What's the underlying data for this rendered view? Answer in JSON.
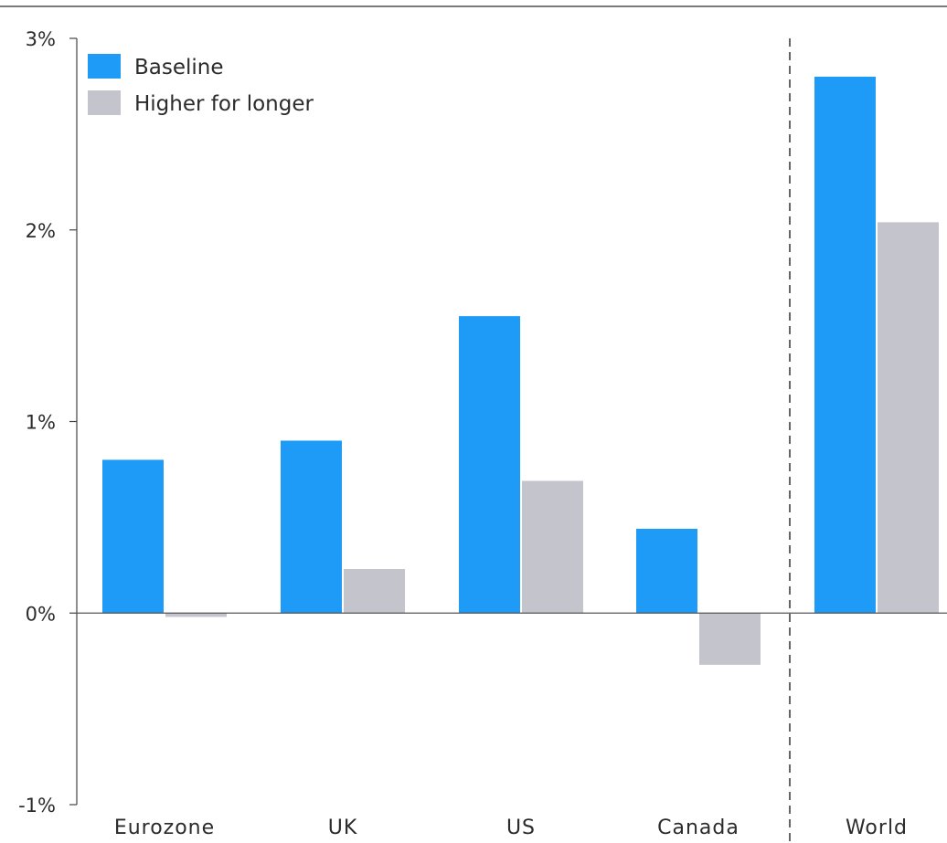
{
  "chart_data": {
    "type": "bar",
    "categories": [
      "Eurozone",
      "UK",
      "US",
      "Canada",
      "World"
    ],
    "series": [
      {
        "name": "Baseline",
        "values": [
          0.8,
          0.9,
          1.55,
          0.44,
          2.8
        ]
      },
      {
        "name": "Higher for longer",
        "values": [
          -0.02,
          0.23,
          0.69,
          -0.27,
          2.04
        ]
      }
    ],
    "ylim": [
      -1,
      3
    ],
    "yticks": [
      3,
      2,
      1,
      0,
      -1
    ],
    "ytick_labels": [
      "3%",
      "2%",
      "1%",
      "0%",
      "-1%"
    ],
    "legend": "top-left",
    "separator_before": "World",
    "colors": {
      "Baseline": "#1e9bf7",
      "Higher for longer": "#c4c4cc"
    }
  }
}
